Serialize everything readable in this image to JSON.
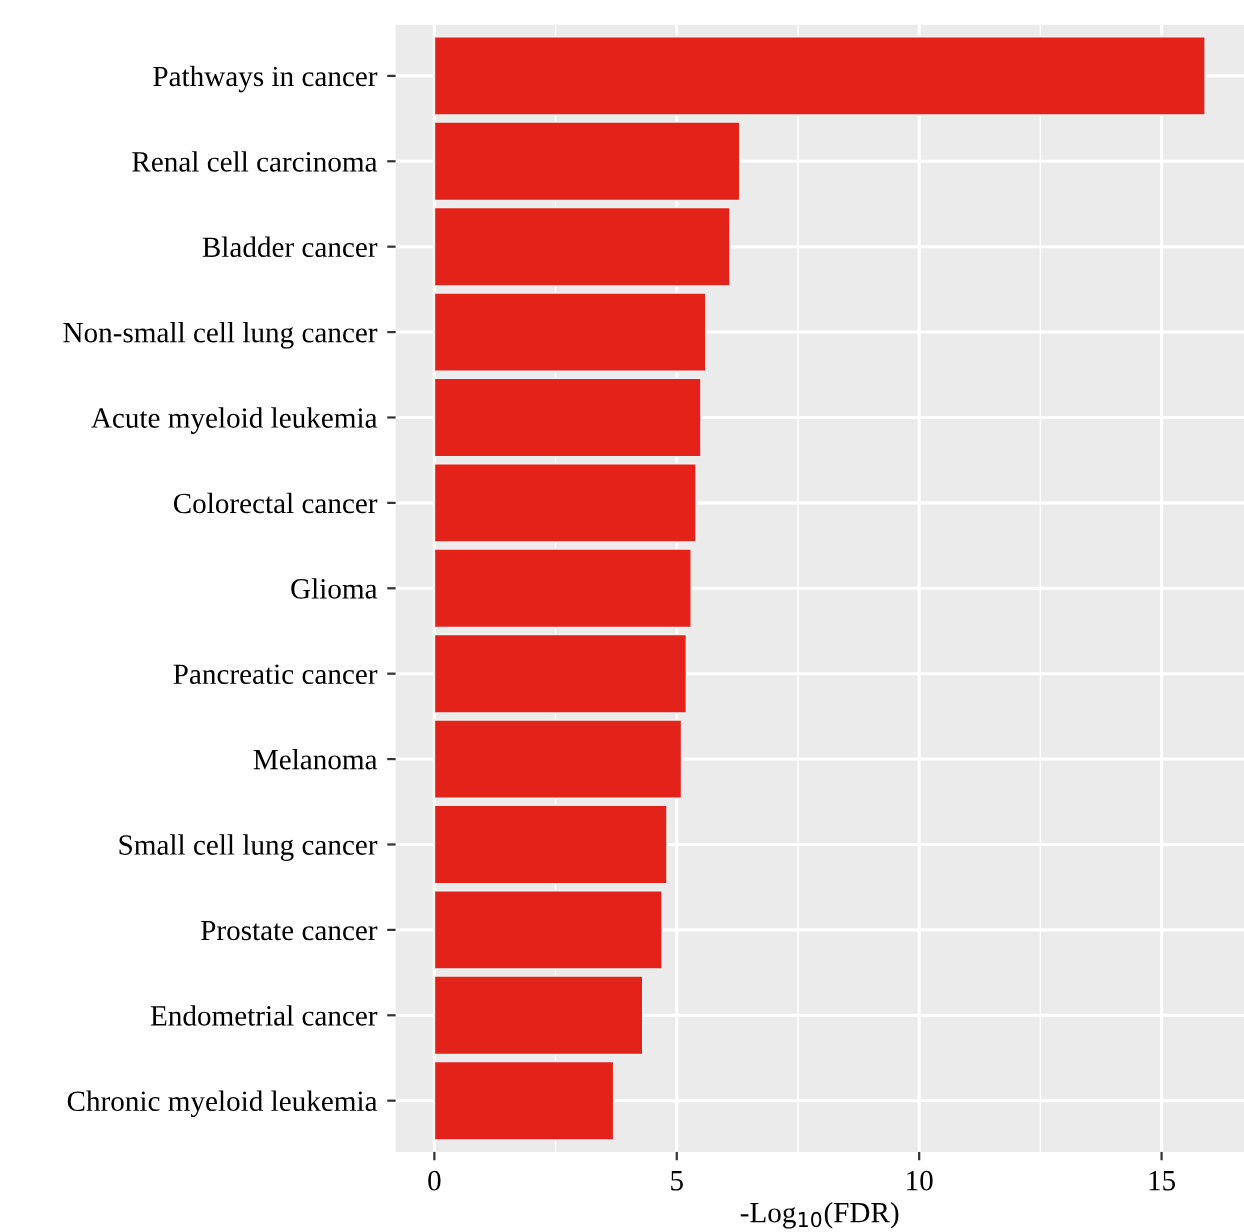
{
  "chart_data": {
    "type": "bar",
    "orientation": "horizontal",
    "xlabel": "-Log$_{10}$(FDR)",
    "categories": [
      "Pathways in cancer",
      "Renal cell carcinoma",
      "Bladder cancer",
      "Non-small cell lung cancer",
      "Acute myeloid leukemia",
      "Colorectal cancer",
      "Glioma",
      "Pancreatic cancer",
      "Melanoma",
      "Small cell lung cancer",
      "Prostate cancer",
      "Endometrial cancer",
      "Chronic myeloid leukemia"
    ],
    "values": [
      15.9,
      6.3,
      6.1,
      5.6,
      5.5,
      5.4,
      5.3,
      5.2,
      5.1,
      4.8,
      4.7,
      4.3,
      3.7
    ],
    "color": "#e3221a",
    "xlim": [
      -0.8,
      16.7
    ],
    "xticks": [
      0,
      5,
      10,
      15
    ],
    "grid": true
  }
}
